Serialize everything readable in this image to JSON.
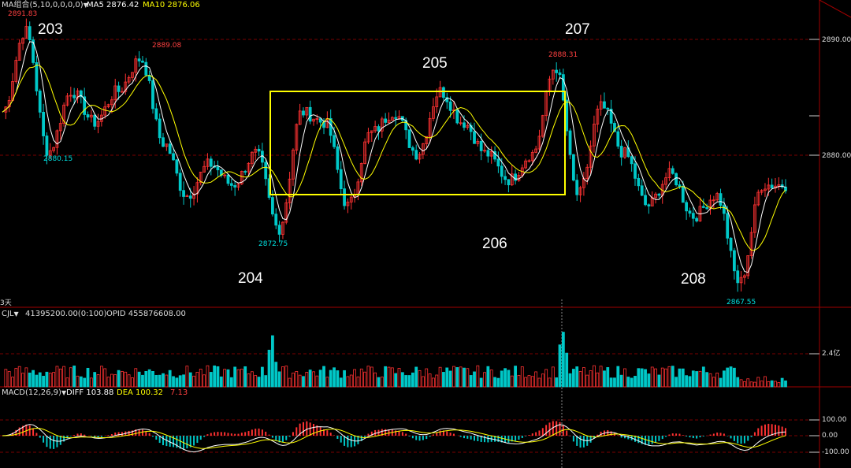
{
  "price_panel": {
    "ma_header": "MA组合(5,10,0,0,0,0)",
    "ma5": "MA5 2876.42",
    "ma10": "MA10 2876.06",
    "axis_labels": [
      "2890.00",
      "2880.00"
    ],
    "high_1": "2891.83",
    "high_2": "2889.08",
    "high_3": "2888.31",
    "low_1": "2880.15",
    "low_2": "2872.75",
    "low_3": "2867.55",
    "wave_labels": [
      "203",
      "204",
      "205",
      "206",
      "207",
      "208"
    ],
    "period": "3天"
  },
  "volume_panel": {
    "indicator": "CJL",
    "cjl_value": "41395200.00(0:100)",
    "opid_value": "OPID 455876608.00",
    "axis_label": "2.4亿"
  },
  "macd_panel": {
    "indicator": "MACD(12,26,9)",
    "diff": "DIFF 103.88",
    "dea": "DEA 100.32",
    "macd": "7.13",
    "axis_labels": [
      "100.00",
      "0.00",
      "-100.00"
    ]
  },
  "colors": {
    "up": "#ff3232",
    "down": "#00c8c8",
    "ma5": "#ffffff",
    "ma10": "#ffff00",
    "box": "#ffff00",
    "grid": "#7a0000"
  },
  "chart_data": {
    "type": "line",
    "price_anchors": [
      2884,
      2891.8,
      2880.2,
      2886,
      2883,
      2886,
      2889.1,
      2881,
      2876,
      2879,
      2877,
      2880,
      2872.8,
      2884,
      2883,
      2875,
      2882,
      2884,
      2880,
      2886,
      2883,
      2880,
      2877.5,
      2880,
      2888.3,
      2876,
      2884.5,
      2880,
      2875,
      2878,
      2874,
      2876,
      2867.6,
      2877,
      2877
    ],
    "ylim": [
      2866,
      2894
    ]
  }
}
